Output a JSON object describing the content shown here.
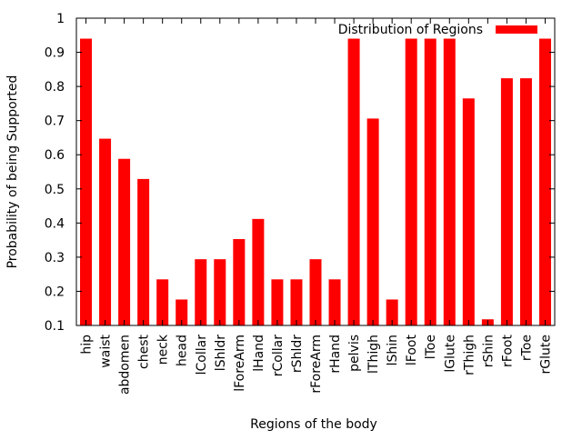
{
  "chart_data": {
    "type": "bar",
    "title": "",
    "xlabel": "Regions of the body",
    "ylabel": "Probability of being Supported",
    "ylim": [
      0.1,
      1
    ],
    "yticks": [
      "0.1",
      "0.2",
      "0.3",
      "0.4",
      "0.5",
      "0.6",
      "0.7",
      "0.8",
      "0.9",
      "1"
    ],
    "grid": false,
    "legend_position": "top-right",
    "categories": [
      "hip",
      "waist",
      "abdomen",
      "chest",
      "neck",
      "head",
      "lCollar",
      "lShldr",
      "lForeArm",
      "lHand",
      "rCollar",
      "rShldr",
      "rForeArm",
      "rHand",
      "pelvis",
      "lThigh",
      "lShin",
      "lFoot",
      "lToe",
      "lGlute",
      "rThigh",
      "rShin",
      "rFoot",
      "rToe",
      "rGlute"
    ],
    "series": [
      {
        "name": "Distribution of Regions",
        "color": "#ff0000",
        "values": [
          0.94,
          0.647,
          0.588,
          0.529,
          0.235,
          0.176,
          0.294,
          0.294,
          0.353,
          0.412,
          0.235,
          0.235,
          0.294,
          0.235,
          0.94,
          0.706,
          0.176,
          0.94,
          0.94,
          0.94,
          0.765,
          0.118,
          0.824,
          0.824,
          0.94
        ]
      }
    ]
  }
}
